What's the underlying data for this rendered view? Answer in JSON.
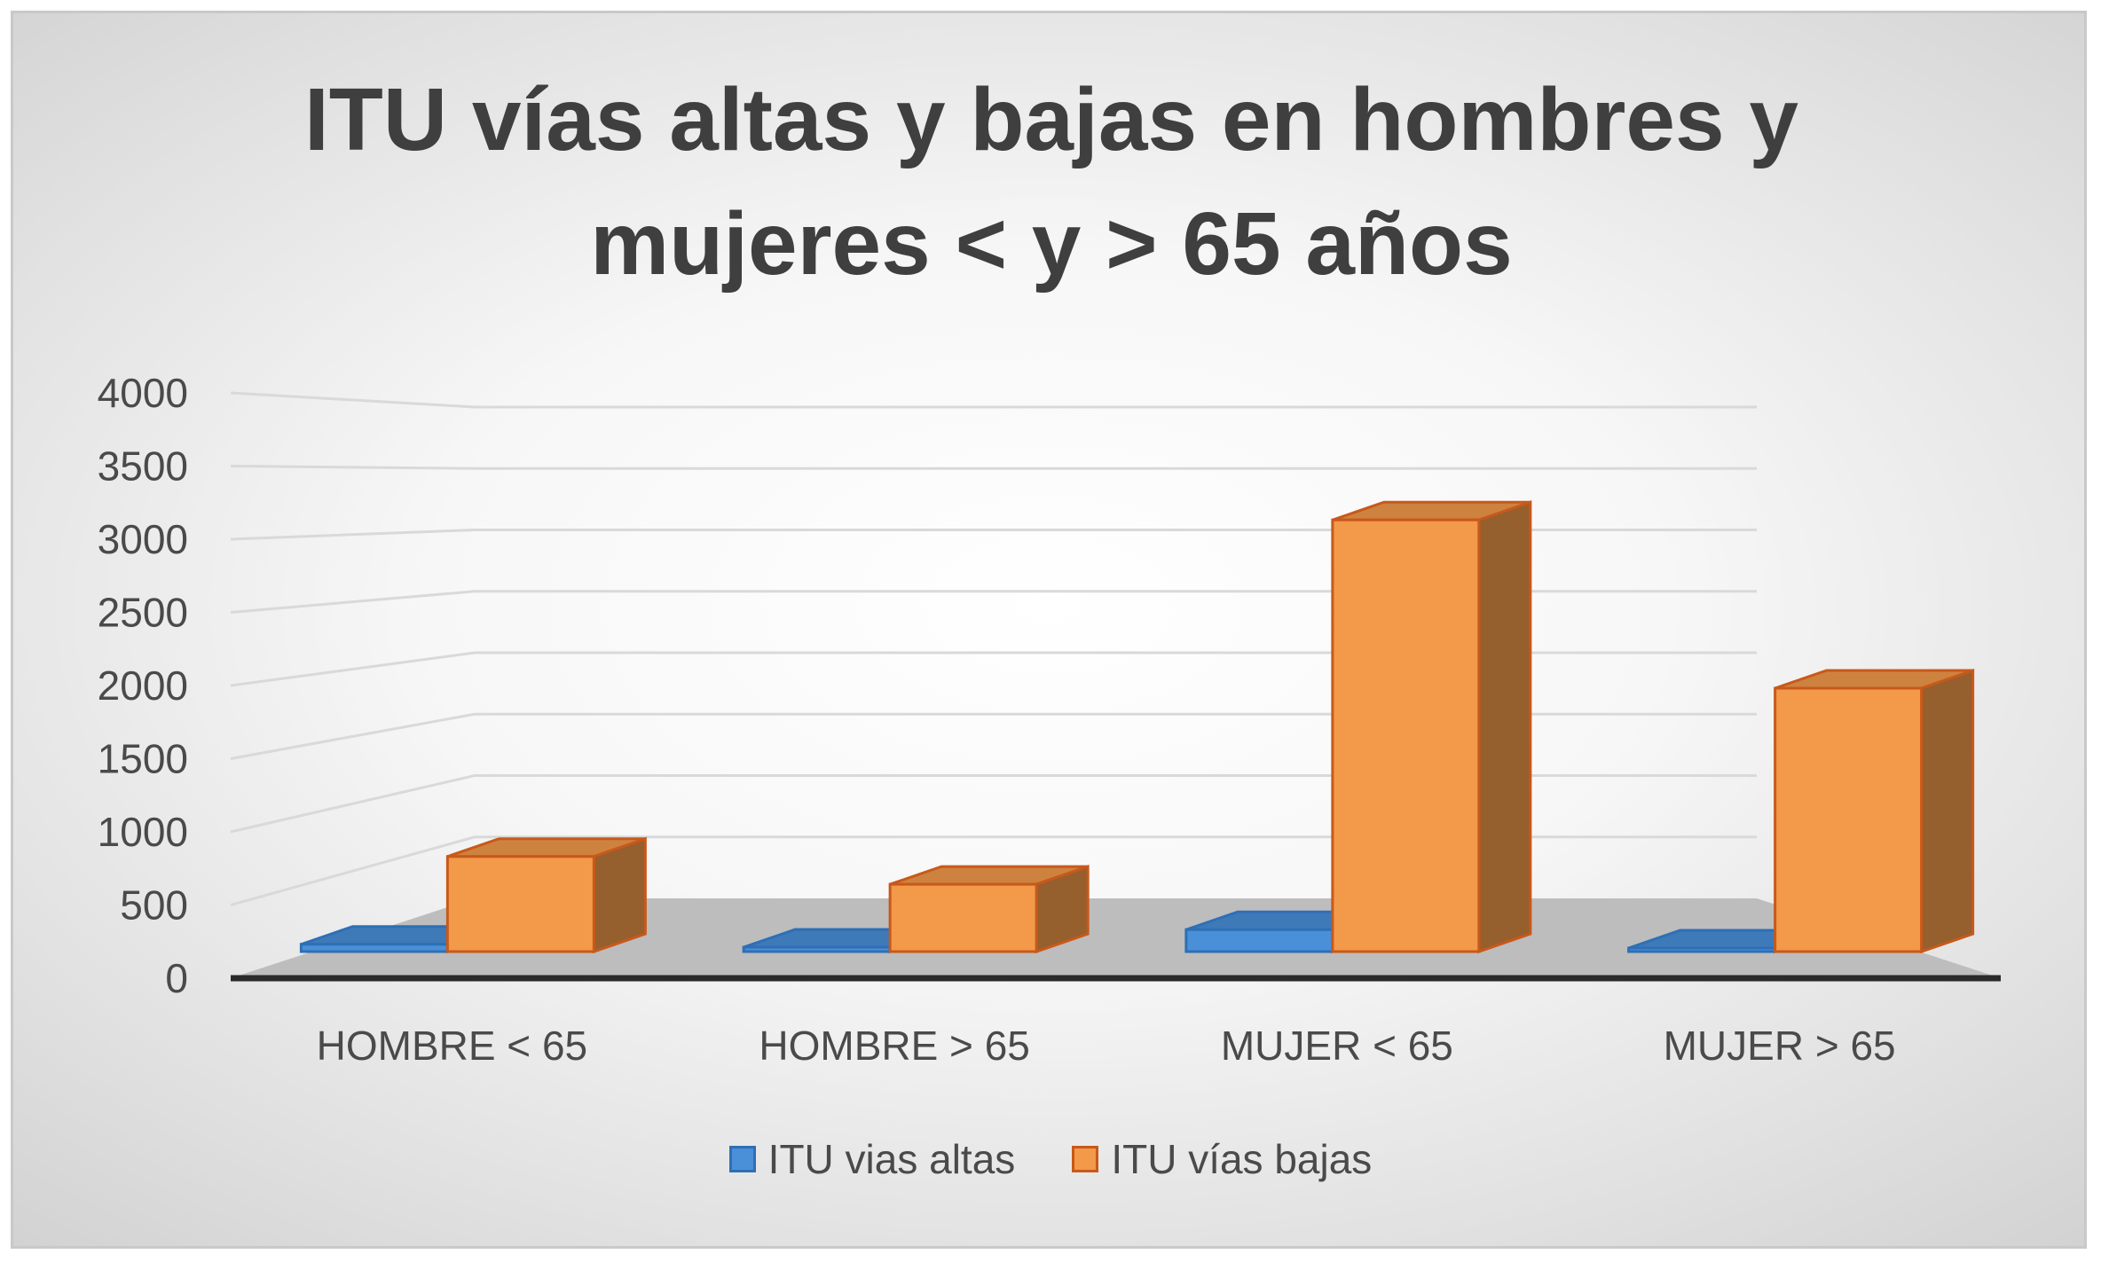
{
  "chart_data": {
    "type": "bar",
    "title": "ITU vías altas y bajas en hombres y mujeres < y > 65 años",
    "categories": [
      "HOMBRE < 65",
      "HOMBRE > 65",
      "MUJER < 65",
      "MUJER > 65"
    ],
    "series": [
      {
        "name": "ITU vias altas",
        "values": [
          50,
          30,
          150,
          20
        ],
        "color": "#4a90d9",
        "edge": "#2e6fb6"
      },
      {
        "name": "ITU vías bajas",
        "values": [
          650,
          460,
          2950,
          1800
        ],
        "color": "#f2994a",
        "edge": "#c8591a"
      }
    ],
    "yticks": [
      0,
      500,
      1000,
      1500,
      2000,
      2500,
      3000,
      3500,
      4000
    ],
    "ylim": [
      0,
      4000
    ],
    "grid": true,
    "legend": "bottom"
  }
}
